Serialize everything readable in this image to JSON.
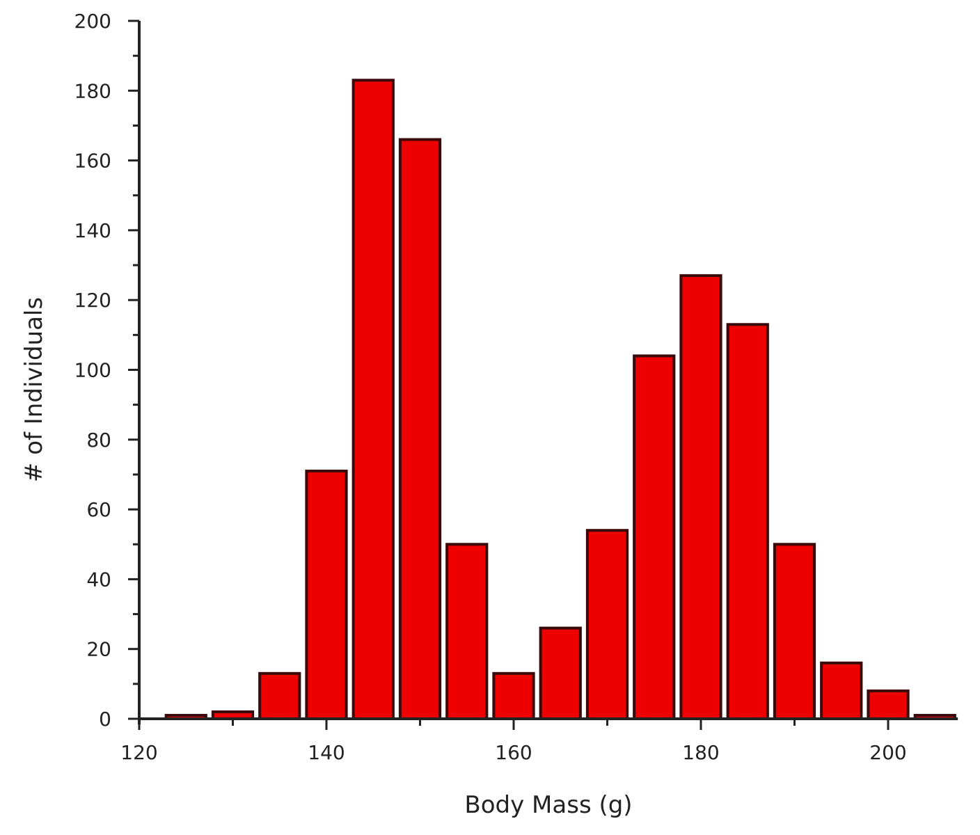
{
  "chart_data": {
    "type": "bar",
    "title": "",
    "xlabel": "Body Mass (g)",
    "ylabel": "# of Individuals",
    "x": [
      125,
      130,
      135,
      140,
      145,
      150,
      155,
      160,
      165,
      170,
      175,
      180,
      185,
      190,
      195,
      200,
      205
    ],
    "values": [
      1,
      2,
      13,
      71,
      183,
      166,
      50,
      13,
      26,
      54,
      104,
      127,
      113,
      50,
      16,
      8,
      1
    ],
    "bin_width": 5,
    "xlim": [
      120,
      207
    ],
    "ylim": [
      0,
      200
    ],
    "xticks": [
      120,
      140,
      160,
      180,
      200
    ],
    "yticks": [
      0,
      20,
      40,
      60,
      80,
      100,
      120,
      140,
      160,
      180,
      200
    ],
    "xtick_labels": [
      "120",
      "140",
      "160",
      "180",
      "200"
    ],
    "ytick_labels": [
      "0",
      "20",
      "40",
      "60",
      "80",
      "100",
      "120",
      "140",
      "160",
      "180",
      "200"
    ],
    "grid": false,
    "bar_color": "#ee0000",
    "bar_edge_color": "#3a0a0a"
  }
}
